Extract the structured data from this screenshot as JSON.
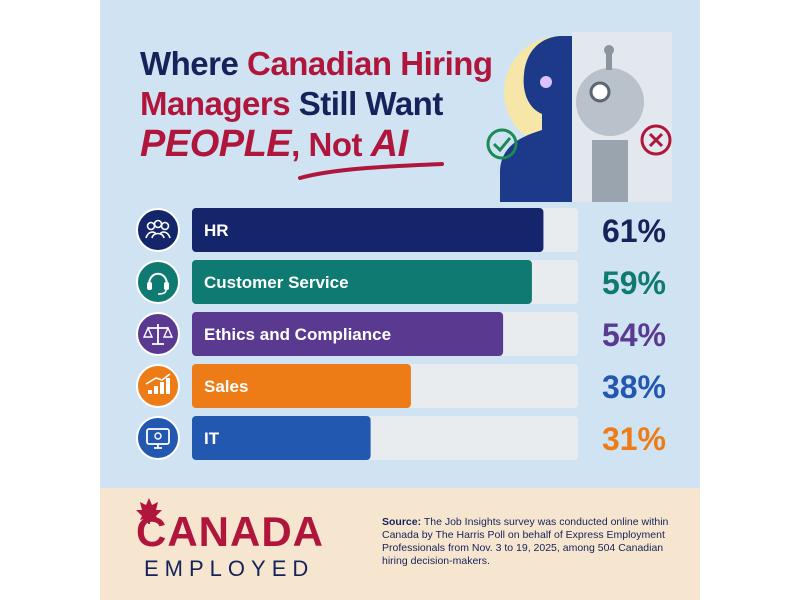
{
  "headline": {
    "line1_a": "Where ",
    "line1_b": "Canadian Hiring",
    "line2_a": "Managers",
    "line2_b": " Still Want",
    "line3_a": "PEOPLE",
    "line3_b": ", Not ",
    "line3_c": "AI"
  },
  "chart_data": {
    "type": "bar",
    "orientation": "horizontal",
    "categories": [
      "HR",
      "Customer Service",
      "Ethics and Compliance",
      "Sales",
      "IT"
    ],
    "values": [
      61,
      59,
      54,
      38,
      31
    ],
    "value_labels": [
      "61%",
      "59%",
      "54%",
      "38%",
      "31%"
    ],
    "xlim": [
      0,
      67
    ],
    "grid": false,
    "bar_colors": [
      "#15256b",
      "#0f7a72",
      "#5a3a91",
      "#ee7c16",
      "#2258b0"
    ],
    "label_colors": [
      "#14235a",
      "#0f7a72",
      "#5a3a91",
      "#2258b0",
      "#ee7c16"
    ],
    "icons": [
      "people-icon",
      "headset-icon",
      "scales-icon",
      "growth-chart-icon",
      "computer-icon"
    ]
  },
  "footer": {
    "brand_name": "CANADA",
    "brand_sub": "EMPLOYED",
    "source_label": "Source:",
    "source_text": " The Job Insights survey was conducted online within Canada by The Harris Poll on behalf of Express Employment Professionals from Nov. 3 to 19, 2025, among 504 Canadian hiring decision-makers."
  },
  "colors": {
    "background": "#cfe3f2",
    "navy": "#14235a",
    "red": "#b0163c",
    "footer_bg": "#f7e6cf"
  }
}
